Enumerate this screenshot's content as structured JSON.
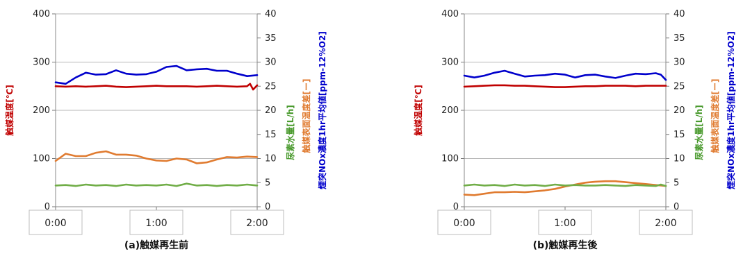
{
  "chart_data": [
    {
      "type": "line",
      "caption": "(a)触媒再生前",
      "x_tick_labels": [
        "0:00",
        "1:00",
        "2:00"
      ],
      "xlim_hours": [
        0,
        2
      ],
      "left_axis": {
        "label": "触媒温度[℃]",
        "label_color": "#c00000",
        "ylim": [
          0,
          400
        ],
        "ticks": [
          0,
          100,
          200,
          300,
          400
        ]
      },
      "right_axis": {
        "ylim": [
          0,
          40
        ],
        "ticks": [
          0,
          5,
          10,
          15,
          20,
          25,
          30,
          35,
          40
        ],
        "labels": [
          {
            "text": "尿素水量[L/h]",
            "color": "#4a9a2e"
          },
          {
            "text": "触媒表面温度差[ー]",
            "color": "#e07b30"
          },
          {
            "text": "煙突NOx濃度1hr平均値[ppm-12%O2]",
            "color": "#0000cc"
          }
        ]
      },
      "grid": "horizontal",
      "series": [
        {
          "name": "触媒温度[℃]",
          "color": "#c00000",
          "axis": "left",
          "x": [
            0,
            0.1,
            0.2,
            0.3,
            0.4,
            0.5,
            0.6,
            0.7,
            0.8,
            0.9,
            1.0,
            1.1,
            1.2,
            1.3,
            1.4,
            1.5,
            1.6,
            1.7,
            1.8,
            1.9,
            1.93,
            1.96,
            2.0
          ],
          "y": [
            250,
            249,
            250,
            249,
            250,
            251,
            249,
            248,
            249,
            250,
            251,
            250,
            250,
            250,
            249,
            250,
            251,
            250,
            249,
            250,
            255,
            243,
            252
          ]
        },
        {
          "name": "煙突NOx濃度1hr平均値[ppm-12%O2]",
          "color": "#0000cc",
          "axis": "right",
          "x": [
            0,
            0.1,
            0.2,
            0.3,
            0.4,
            0.5,
            0.6,
            0.7,
            0.8,
            0.9,
            1.0,
            1.1,
            1.2,
            1.3,
            1.4,
            1.5,
            1.6,
            1.7,
            1.8,
            1.9,
            2.0
          ],
          "y": [
            25.8,
            25.5,
            26.8,
            27.8,
            27.4,
            27.5,
            28.3,
            27.6,
            27.4,
            27.5,
            28.0,
            29.0,
            29.2,
            28.3,
            28.5,
            28.6,
            28.2,
            28.2,
            27.6,
            27.1,
            27.3
          ]
        },
        {
          "name": "触媒表面温度差[ー]",
          "color": "#e07b30",
          "axis": "right",
          "x": [
            0,
            0.1,
            0.2,
            0.3,
            0.4,
            0.5,
            0.6,
            0.7,
            0.8,
            0.9,
            1.0,
            1.1,
            1.2,
            1.3,
            1.4,
            1.5,
            1.6,
            1.7,
            1.8,
            1.9,
            2.0
          ],
          "y": [
            9.5,
            11.0,
            10.5,
            10.5,
            11.2,
            11.5,
            10.8,
            10.8,
            10.6,
            10.0,
            9.6,
            9.5,
            10.0,
            9.8,
            9.0,
            9.2,
            9.8,
            10.3,
            10.2,
            10.4,
            10.3
          ]
        },
        {
          "name": "尿素水量[L/h]",
          "color": "#70ad47",
          "axis": "right",
          "x": [
            0,
            0.1,
            0.2,
            0.3,
            0.4,
            0.5,
            0.6,
            0.7,
            0.8,
            0.9,
            1.0,
            1.1,
            1.2,
            1.3,
            1.4,
            1.5,
            1.6,
            1.7,
            1.8,
            1.9,
            2.0
          ],
          "y": [
            4.4,
            4.5,
            4.3,
            4.6,
            4.4,
            4.5,
            4.3,
            4.6,
            4.4,
            4.5,
            4.4,
            4.6,
            4.3,
            4.8,
            4.4,
            4.5,
            4.3,
            4.5,
            4.4,
            4.6,
            4.4
          ]
        }
      ]
    },
    {
      "type": "line",
      "caption": "(b)触媒再生後",
      "x_tick_labels": [
        "0:00",
        "1:00",
        "2:00"
      ],
      "xlim_hours": [
        0,
        2
      ],
      "left_axis": {
        "label": "触媒温度[℃]",
        "label_color": "#c00000",
        "ylim": [
          0,
          400
        ],
        "ticks": [
          0,
          100,
          200,
          300,
          400
        ]
      },
      "right_axis": {
        "ylim": [
          0,
          40
        ],
        "ticks": [
          0,
          5,
          10,
          15,
          20,
          25,
          30,
          35,
          40
        ],
        "labels": [
          {
            "text": "尿素水量[L/h]",
            "color": "#4a9a2e"
          },
          {
            "text": "触媒表面温度差[ー]",
            "color": "#e07b30"
          },
          {
            "text": "煙突NOx濃度1hr平均値[ppm-12%O2]",
            "color": "#0000cc"
          }
        ]
      },
      "grid": "horizontal",
      "series": [
        {
          "name": "触媒温度[℃]",
          "color": "#c00000",
          "axis": "left",
          "x": [
            0,
            0.1,
            0.2,
            0.3,
            0.4,
            0.5,
            0.6,
            0.7,
            0.8,
            0.9,
            1.0,
            1.1,
            1.2,
            1.3,
            1.4,
            1.5,
            1.6,
            1.7,
            1.8,
            1.9,
            2.0
          ],
          "y": [
            249,
            250,
            251,
            252,
            252,
            251,
            251,
            250,
            249,
            248,
            248,
            249,
            250,
            250,
            251,
            251,
            251,
            250,
            251,
            251,
            251
          ]
        },
        {
          "name": "煙突NOx濃度1hr平均値[ppm-12%O2]",
          "color": "#0000cc",
          "axis": "right",
          "x": [
            0,
            0.1,
            0.2,
            0.3,
            0.4,
            0.5,
            0.6,
            0.7,
            0.8,
            0.9,
            1.0,
            1.1,
            1.2,
            1.3,
            1.4,
            1.5,
            1.6,
            1.7,
            1.8,
            1.9,
            1.95,
            2.0
          ],
          "y": [
            27.2,
            26.8,
            27.2,
            27.8,
            28.2,
            27.6,
            27.0,
            27.2,
            27.3,
            27.6,
            27.4,
            26.8,
            27.3,
            27.4,
            27.0,
            26.7,
            27.2,
            27.6,
            27.5,
            27.7,
            27.4,
            26.3
          ]
        },
        {
          "name": "触媒表面温度差[ー]",
          "color": "#e07b30",
          "axis": "right",
          "x": [
            0,
            0.1,
            0.2,
            0.3,
            0.4,
            0.5,
            0.6,
            0.7,
            0.8,
            0.9,
            1.0,
            1.1,
            1.2,
            1.3,
            1.4,
            1.5,
            1.6,
            1.7,
            1.8,
            1.9,
            2.0
          ],
          "y": [
            2.5,
            2.4,
            2.7,
            3.0,
            3.0,
            3.1,
            3.0,
            3.2,
            3.4,
            3.7,
            4.2,
            4.6,
            5.0,
            5.2,
            5.3,
            5.3,
            5.1,
            4.9,
            4.7,
            4.5,
            4.3
          ]
        },
        {
          "name": "尿素水量[L/h]",
          "color": "#70ad47",
          "axis": "right",
          "x": [
            0,
            0.1,
            0.2,
            0.3,
            0.4,
            0.5,
            0.6,
            0.7,
            0.8,
            0.9,
            1.0,
            1.1,
            1.2,
            1.3,
            1.4,
            1.5,
            1.6,
            1.7,
            1.8,
            1.9,
            1.95,
            2.0
          ],
          "y": [
            4.4,
            4.6,
            4.4,
            4.5,
            4.3,
            4.6,
            4.4,
            4.5,
            4.3,
            4.6,
            4.4,
            4.5,
            4.4,
            4.4,
            4.5,
            4.4,
            4.3,
            4.5,
            4.4,
            4.3,
            4.6,
            4.3
          ]
        }
      ]
    }
  ]
}
